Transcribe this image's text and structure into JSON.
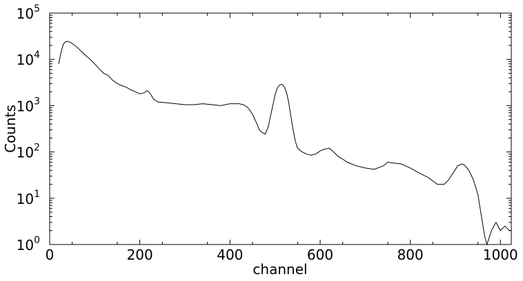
{
  "chart_data": {
    "type": "line",
    "title": "",
    "xlabel": "channel",
    "ylabel": "Counts",
    "xlim": [
      0,
      1024
    ],
    "ylim": [
      1,
      100000
    ],
    "yscale": "log",
    "grid": false,
    "legend": "none",
    "line_color": "#000000",
    "x_ticks": [
      {
        "value": 0,
        "label": "0"
      },
      {
        "value": 200,
        "label": "200"
      },
      {
        "value": 400,
        "label": "400"
      },
      {
        "value": 600,
        "label": "600"
      },
      {
        "value": 800,
        "label": "800"
      },
      {
        "value": 1000,
        "label": "1000"
      }
    ],
    "y_ticks": [
      {
        "value": 1,
        "base": "10",
        "exp": "0"
      },
      {
        "value": 10,
        "base": "10",
        "exp": "1"
      },
      {
        "value": 100,
        "base": "10",
        "exp": "2"
      },
      {
        "value": 1000,
        "base": "10",
        "exp": "3"
      },
      {
        "value": 10000,
        "base": "10",
        "exp": "4"
      },
      {
        "value": 100000,
        "base": "10",
        "exp": "5"
      }
    ],
    "series": [
      {
        "points": [
          [
            20,
            8000
          ],
          [
            25,
            14000
          ],
          [
            30,
            21000
          ],
          [
            35,
            24000
          ],
          [
            40,
            24500
          ],
          [
            45,
            23500
          ],
          [
            50,
            22000
          ],
          [
            60,
            18500
          ],
          [
            70,
            15000
          ],
          [
            80,
            12000
          ],
          [
            90,
            10000
          ],
          [
            100,
            8000
          ],
          [
            110,
            6200
          ],
          [
            120,
            5000
          ],
          [
            130,
            4500
          ],
          [
            140,
            3500
          ],
          [
            150,
            3000
          ],
          [
            160,
            2700
          ],
          [
            170,
            2500
          ],
          [
            180,
            2200
          ],
          [
            190,
            2000
          ],
          [
            200,
            1800
          ],
          [
            210,
            1900
          ],
          [
            215,
            2100
          ],
          [
            220,
            2000
          ],
          [
            225,
            1700
          ],
          [
            230,
            1400
          ],
          [
            240,
            1200
          ],
          [
            260,
            1150
          ],
          [
            280,
            1100
          ],
          [
            300,
            1050
          ],
          [
            320,
            1050
          ],
          [
            340,
            1100
          ],
          [
            360,
            1050
          ],
          [
            380,
            1000
          ],
          [
            400,
            1100
          ],
          [
            410,
            1100
          ],
          [
            420,
            1100
          ],
          [
            430,
            1050
          ],
          [
            440,
            900
          ],
          [
            450,
            650
          ],
          [
            460,
            400
          ],
          [
            465,
            300
          ],
          [
            470,
            270
          ],
          [
            478,
            240
          ],
          [
            485,
            350
          ],
          [
            490,
            600
          ],
          [
            495,
            1000
          ],
          [
            500,
            1700
          ],
          [
            505,
            2400
          ],
          [
            510,
            2800
          ],
          [
            515,
            2900
          ],
          [
            520,
            2600
          ],
          [
            525,
            2000
          ],
          [
            530,
            1200
          ],
          [
            535,
            600
          ],
          [
            540,
            300
          ],
          [
            545,
            170
          ],
          [
            550,
            120
          ],
          [
            560,
            100
          ],
          [
            570,
            90
          ],
          [
            580,
            85
          ],
          [
            590,
            90
          ],
          [
            600,
            105
          ],
          [
            610,
            115
          ],
          [
            620,
            120
          ],
          [
            630,
            100
          ],
          [
            640,
            80
          ],
          [
            650,
            70
          ],
          [
            660,
            60
          ],
          [
            680,
            50
          ],
          [
            700,
            45
          ],
          [
            720,
            42
          ],
          [
            740,
            50
          ],
          [
            750,
            60
          ],
          [
            760,
            58
          ],
          [
            780,
            55
          ],
          [
            800,
            45
          ],
          [
            820,
            35
          ],
          [
            840,
            28
          ],
          [
            860,
            20
          ],
          [
            875,
            20
          ],
          [
            885,
            25
          ],
          [
            895,
            35
          ],
          [
            905,
            50
          ],
          [
            915,
            55
          ],
          [
            920,
            52
          ],
          [
            930,
            40
          ],
          [
            940,
            25
          ],
          [
            950,
            12
          ],
          [
            955,
            6
          ],
          [
            960,
            3
          ],
          [
            965,
            1.5
          ],
          [
            970,
            1
          ],
          [
            980,
            2
          ],
          [
            990,
            3
          ],
          [
            1000,
            2
          ],
          [
            1010,
            2.5
          ],
          [
            1020,
            2
          ],
          [
            1024,
            2
          ]
        ]
      }
    ]
  }
}
